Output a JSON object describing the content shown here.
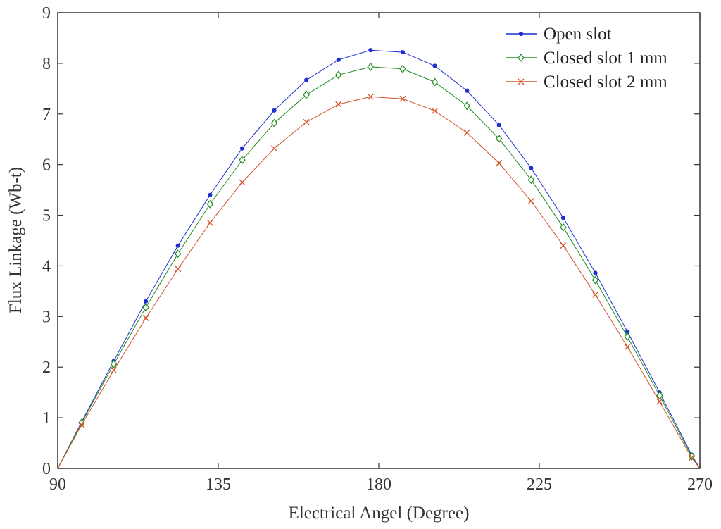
{
  "chart_data": {
    "type": "line",
    "xlabel": "Electrical Angel (Degree)",
    "ylabel": "Flux Linkage (Wb-t)",
    "xlim": [
      90,
      270
    ],
    "ylim": [
      0,
      9
    ],
    "xticks": [
      "90",
      "135",
      "180",
      "225",
      "270"
    ],
    "yticks": [
      "0",
      "1",
      "2",
      "3",
      "4",
      "5",
      "6",
      "7",
      "8",
      "9"
    ],
    "grid": false,
    "legend_position": "top-right",
    "x": [
      90,
      96.7,
      105.7,
      114.7,
      123.7,
      132.7,
      141.7,
      150.7,
      159.7,
      168.7,
      177.7,
      186.7,
      195.7,
      204.7,
      213.7,
      222.7,
      231.7,
      240.7,
      249.7,
      258.7,
      267.7,
      270
    ],
    "series": [
      {
        "name": "Open slot",
        "color": "#1f2fd0",
        "marker": "dot",
        "values": [
          0,
          0.92,
          2.12,
          3.3,
          4.4,
          5.4,
          6.32,
          7.07,
          7.67,
          8.07,
          8.26,
          8.22,
          7.95,
          7.46,
          6.78,
          5.93,
          4.95,
          3.86,
          2.7,
          1.5,
          0.27,
          0
        ]
      },
      {
        "name": "Closed slot 1 mm",
        "color": "#1e8c1e",
        "marker": "diamond",
        "values": [
          0,
          0.9,
          2.06,
          3.18,
          4.24,
          5.22,
          6.09,
          6.82,
          7.38,
          7.77,
          7.93,
          7.89,
          7.63,
          7.16,
          6.51,
          5.7,
          4.76,
          3.72,
          2.6,
          1.44,
          0.24,
          0
        ]
      },
      {
        "name": "Closed slot 2 mm",
        "color": "#d4522a",
        "marker": "x",
        "values": [
          0,
          0.86,
          1.94,
          2.97,
          3.94,
          4.85,
          5.65,
          6.32,
          6.84,
          7.19,
          7.34,
          7.3,
          7.06,
          6.63,
          6.03,
          5.28,
          4.4,
          3.43,
          2.4,
          1.32,
          0.21,
          0
        ]
      }
    ]
  }
}
